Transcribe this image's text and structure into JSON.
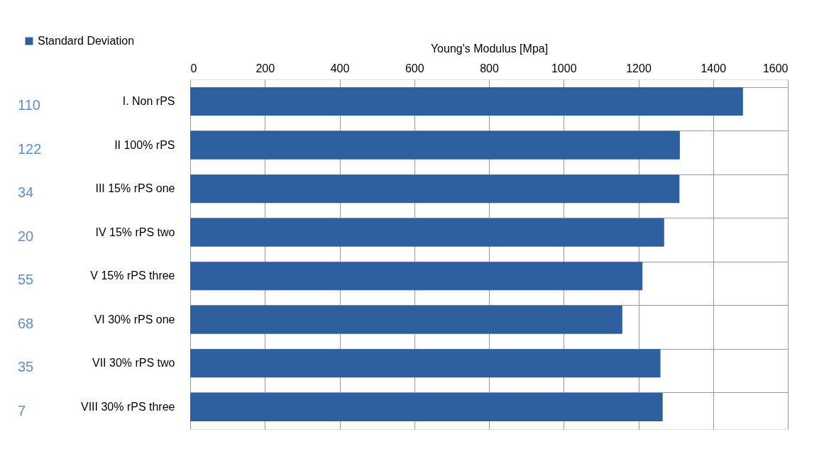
{
  "chart_data": {
    "type": "bar",
    "orientation": "horizontal",
    "xlabel": "Young's Modulus [Mpa]",
    "categories": [
      "I. Non rPS",
      "II 100% rPS",
      "III 15% rPS one",
      "IV 15% rPS two",
      "V 15% rPS three",
      "VI 30% rPS one",
      "VII 30% rPS two",
      "VIII 30% rPS three"
    ],
    "series": [
      {
        "name": "Standard Deviation",
        "color": "#2e5f9f",
        "values": [
          1480,
          1311,
          1310,
          1269,
          1211,
          1157,
          1259,
          1265
        ]
      }
    ],
    "xlim": [
      0,
      1600
    ],
    "xticks": [
      0,
      200,
      400,
      600,
      800,
      1000,
      1200,
      1400,
      1600
    ],
    "grid": true,
    "legend": "top left",
    "annotations": [
      "110",
      "122",
      "34",
      "20",
      "55",
      "68",
      "35",
      "7"
    ]
  }
}
